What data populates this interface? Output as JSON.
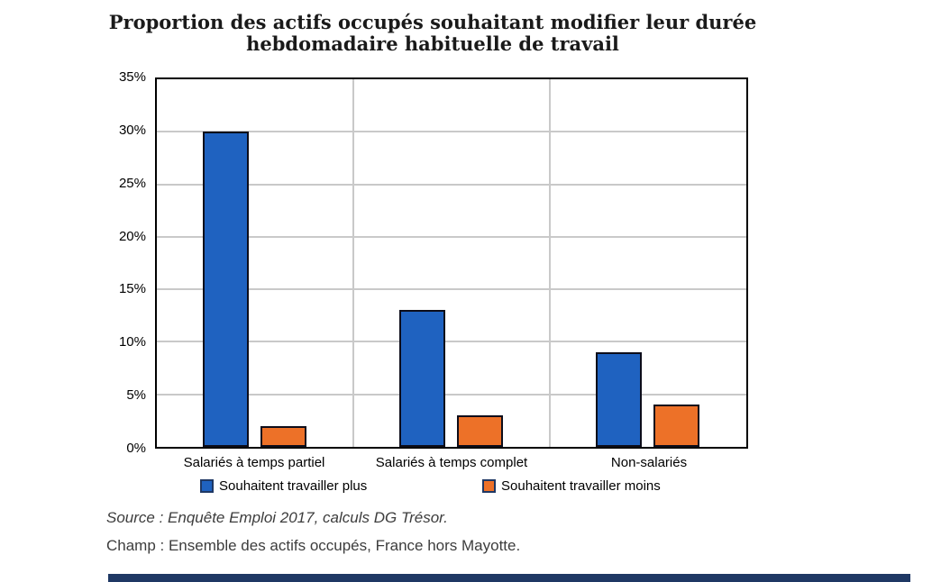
{
  "title": {
    "line1": "Proportion des actifs occupés souhaitant modifier leur durée",
    "line2": "hebdomadaire habituelle de travail"
  },
  "chart_data": {
    "type": "bar",
    "title": "Proportion des actifs occupés souhaitant modifier leur durée hebdomadaire habituelle de travail",
    "categories": [
      "Salariés à temps partiel",
      "Salariés à temps complet",
      "Non-salariés"
    ],
    "series": [
      {
        "name": "Souhaitent travailler plus",
        "values": [
          30,
          13,
          9
        ],
        "color": "#1F62C0"
      },
      {
        "name": "Souhaitent travailler moins",
        "values": [
          2,
          3,
          4
        ],
        "color": "#ED7128"
      }
    ],
    "xlabel": "",
    "ylabel": "",
    "ylim": [
      0,
      35
    ],
    "ytick_step": 5,
    "ytick_format": "percent",
    "grid": true,
    "gridline_color": "#C9C9C9",
    "bar_outline_color": "#0D0D1A",
    "legend_position": "bottom"
  },
  "footnotes": {
    "source": "Source : Enquête Emploi 2017, calculs DG Trésor.",
    "champ": "Champ : Ensemble des actifs occupés, France hors Mayotte."
  },
  "footer_bar_color": "#1F3864"
}
